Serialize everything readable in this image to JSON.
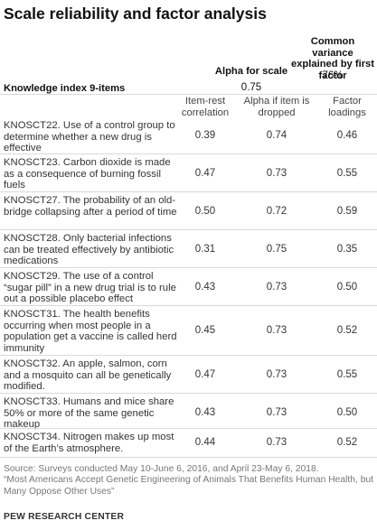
{
  "title": "Scale reliability and factor analysis",
  "header": {
    "common_variance_label": "Common variance explained by first factor",
    "common_variance_value": "76%",
    "alpha_label": "Alpha for scale",
    "alpha_value": "0.75",
    "index_label": "Knowledge index 9-items"
  },
  "columns": {
    "item_rest": "Item-rest correlation",
    "alpha_if_dropped": "Alpha if item is dropped",
    "factor_loadings": "Factor loadings"
  },
  "rows": [
    {
      "label": "KNOSCT22. Use of a control group to determine whether a new drug is effective",
      "item_rest": "0.39",
      "alpha": "0.74",
      "loading": "0.46"
    },
    {
      "label": "KNOSCT23. Carbon dioxide is made as a consequence of burning fossil fuels",
      "item_rest": "0.47",
      "alpha": "0.73",
      "loading": "0.55"
    },
    {
      "label": "KNOSCT27. The probability of an old-bridge collapsing after a period of time",
      "item_rest": "0.50",
      "alpha": "0.72",
      "loading": "0.59"
    },
    {
      "label": "KNOSCT28. Only bacterial infections can be treated effectively by antibiotic medications",
      "item_rest": "0.31",
      "alpha": "0.75",
      "loading": "0.35"
    },
    {
      "label": "KNOSCT29. The use of a control “sugar pill” in a new drug trial is to rule out a possible placebo effect",
      "item_rest": "0.43",
      "alpha": "0.73",
      "loading": "0.50"
    },
    {
      "label": "KNOSCT31. The health benefits occurring when most people in a population get a vaccine is called herd immunity",
      "item_rest": "0.45",
      "alpha": "0.73",
      "loading": "0.52"
    },
    {
      "label": "KNOSCT32. An apple, salmon, corn and a mosquito can all be genetically modified.",
      "item_rest": "0.47",
      "alpha": "0.73",
      "loading": "0.55"
    },
    {
      "label": "KNOSCT33. Humans and mice share 50% or more of the same genetic makeup",
      "item_rest": "0.43",
      "alpha": "0.73",
      "loading": "0.50"
    },
    {
      "label": "KNOSCT34. Nitrogen makes up most of the Earth’s atmosphere.",
      "item_rest": "0.44",
      "alpha": "0.73",
      "loading": "0.52"
    }
  ],
  "source": "Source: Surveys conducted May 10-June 6, 2016, and April 23-May 6, 2018.",
  "report": "“Most Americans Accept Genetic Engineering of Animals That Benefits Human Health, but Many Oppose Other Uses”",
  "org": "PEW RESEARCH CENTER"
}
